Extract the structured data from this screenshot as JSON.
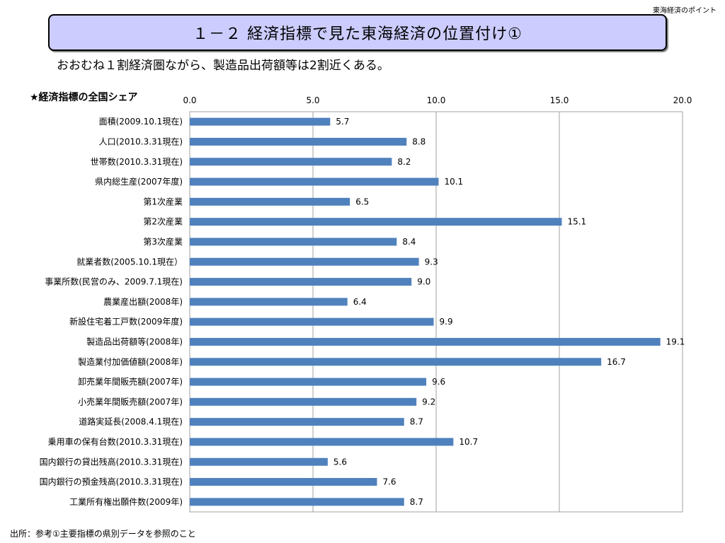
{
  "header_note": "東海経済のポイント",
  "title": "１－２ 経済指標で見た東海経済の位置付け①",
  "subtitle": "おおむね１割経済圏ながら、製造品出荷額等は2割近くある。",
  "chart_heading": "★経済指標の全国シェア",
  "footer": "出所：参考①主要指標の県別データを参照のこと",
  "chart_data": {
    "type": "bar",
    "orientation": "horizontal",
    "title": "",
    "xlabel": "",
    "ylabel": "",
    "xlim": [
      0,
      20
    ],
    "xticks": [
      0,
      5,
      10,
      15,
      20
    ],
    "xtick_labels": [
      "0.0",
      "5.0",
      "10.0",
      "15.0",
      "20.0"
    ],
    "grid": true,
    "bar_color": "#4f81bd",
    "categories": [
      "面積(2009.10.1現在)",
      "人口(2010.3.31現在)",
      "世帯数(2010.3.31現在)",
      "県内総生産(2007年度)",
      "第1次産業",
      "第2次産業",
      "第3次産業",
      "就業者数(2005.10.1現在）",
      "事業所数(民営のみ、2009.7.1現在)",
      "農業産出額(2008年)",
      "新設住宅着工戸数(2009年度)",
      "製造品出荷額等(2008年)",
      "製造業付加価値額(2008年)",
      "卸売業年間販売額(2007年)",
      "小売業年間販売額(2007年)",
      "道路実延長(2008.4.1現在)",
      "乗用車の保有台数(2010.3.31現在)",
      "国内銀行の貸出残高(2010.3.31現在)",
      "国内銀行の預金残高(2010.3.31現在)",
      "工業所有権出願件数(2009年)"
    ],
    "values": [
      5.7,
      8.8,
      8.2,
      10.1,
      6.5,
      15.1,
      8.4,
      9.3,
      9.0,
      6.4,
      9.9,
      19.1,
      16.7,
      9.6,
      9.2,
      8.7,
      10.7,
      5.6,
      7.6,
      8.7
    ],
    "value_labels": [
      "5.7",
      "8.8",
      "8.2",
      "10.1",
      "6.5",
      "15.1",
      "8.4",
      "9.3",
      "9.0",
      "6.4",
      "9.9",
      "19.1",
      "16.7",
      "9.6",
      "9.2",
      "8.7",
      "10.7",
      "5.6",
      "7.6",
      "8.7"
    ]
  }
}
